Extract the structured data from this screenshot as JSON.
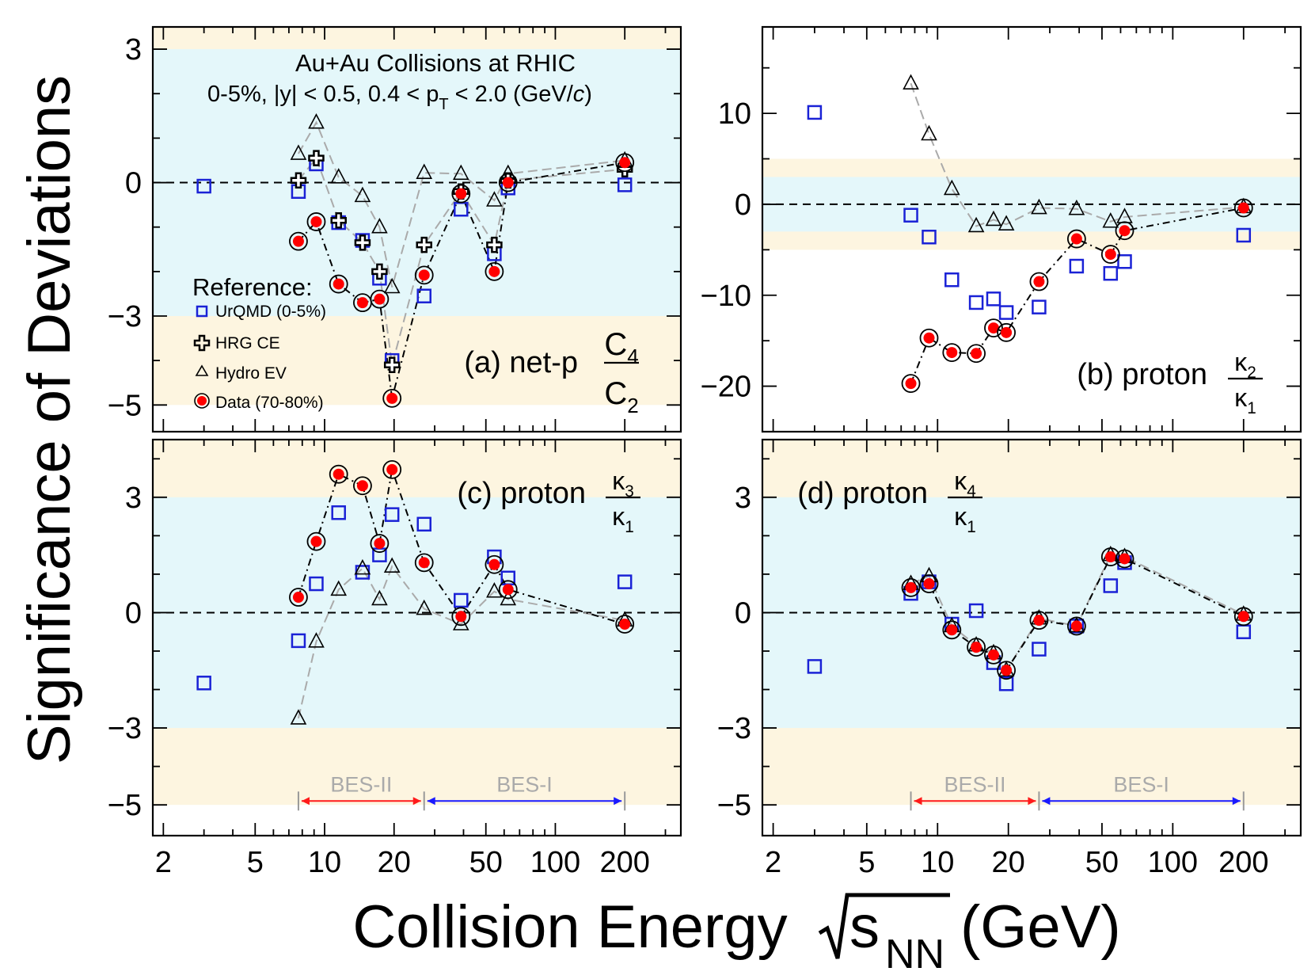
{
  "figure": {
    "ylabel": "Significance of Deviations",
    "xlabel_main": "Collision Energy",
    "xlabel_sqrt_s": "s",
    "xlabel_sub": "NN",
    "xlabel_unit": "(GeV)",
    "x_ticks": [
      2,
      5,
      10,
      20,
      50,
      100,
      200
    ],
    "x_tick_labels": [
      "2",
      "5",
      "10",
      "20",
      "50",
      "100",
      "200"
    ],
    "x_range": [
      1.8,
      350
    ],
    "header_line1": "Au+Au Collisions at RHIC",
    "header_line2_a": "0-5%, |y| < 0.5, 0.4 < p",
    "header_line2_sub": "T",
    "header_line2_b": " < 2.0 (GeV/",
    "header_line2_c": "c",
    "header_line2_d": ")",
    "legend_title": "Reference:",
    "legend": [
      "UrQMD (0-5%)",
      "HRG CE",
      "Hydro EV",
      "Data (70-80%)"
    ],
    "bes2_label": "BES-II",
    "bes1_label": "BES-I",
    "colors": {
      "band_inner": "#e4f7fa",
      "band_outer": "#fdf5e0",
      "urqmd": "#1a22d6",
      "data_fill": "#ff0000",
      "bes2_arrow": "#ff1a1a",
      "bes1_arrow": "#1a1aff",
      "bes_text": "#aaaaaa"
    }
  },
  "chart_data": [
    {
      "type": "scatter",
      "id": "a",
      "label": "(a) net-p",
      "ratio_num": "C",
      "ratio_num_sub": "4",
      "ratio_den": "C",
      "ratio_den_sub": "2",
      "ylim": [
        -5.6,
        3.5
      ],
      "yticks": [
        -5,
        -3,
        0,
        3
      ],
      "ytick_labels": [
        "−5",
        "−3",
        "0",
        "3"
      ],
      "bands": {
        "inner": [
          -3,
          3
        ],
        "outer": [
          -5,
          5
        ]
      },
      "series": [
        {
          "name": "UrQMD (0-5%)",
          "x": [
            3,
            7.7,
            9.2,
            11.5,
            14.6,
            17.3,
            19.6,
            27,
            39,
            54.4,
            62.4,
            200
          ],
          "y": [
            -0.08,
            -0.2,
            0.42,
            -0.9,
            -1.3,
            -2.15,
            -4.0,
            -2.55,
            -0.6,
            -1.6,
            -0.12,
            -0.05
          ]
        },
        {
          "name": "HRG CE",
          "x": [
            7.7,
            9.2,
            11.5,
            14.6,
            17.3,
            19.6,
            27,
            39,
            54.4,
            62.4,
            200
          ],
          "y": [
            0.05,
            0.55,
            -0.85,
            -1.35,
            -2.0,
            -4.1,
            -1.4,
            -0.2,
            -1.4,
            0.05,
            0.3
          ]
        },
        {
          "name": "Hydro EV",
          "x": [
            7.7,
            9.2,
            11.5,
            14.6,
            17.3,
            19.6,
            27,
            39,
            54.4,
            62.4,
            200
          ],
          "y": [
            0.65,
            1.35,
            0.12,
            -0.3,
            -1.0,
            -2.35,
            0.22,
            0.2,
            -0.4,
            0.2,
            0.5
          ]
        },
        {
          "name": "Data (70-80%)",
          "x": [
            7.7,
            9.2,
            11.5,
            14.6,
            17.3,
            19.6,
            27,
            39,
            54.4,
            62.4,
            200
          ],
          "y": [
            -1.32,
            -0.88,
            -2.28,
            -2.7,
            -2.62,
            -4.85,
            -2.08,
            -0.25,
            -2.0,
            0.0,
            0.45
          ]
        }
      ]
    },
    {
      "type": "scatter",
      "id": "b",
      "label": "(b) proton",
      "ratio_num": "κ",
      "ratio_num_sub": "2",
      "ratio_den": "κ",
      "ratio_den_sub": "1",
      "ylim": [
        -25,
        19.5
      ],
      "yticks": [
        -20,
        -10,
        0,
        10
      ],
      "ytick_labels": [
        "−20",
        "−10",
        "0",
        "10"
      ],
      "bands": {
        "inner": [
          -3,
          3
        ],
        "outer": [
          -5,
          5
        ]
      },
      "series": [
        {
          "name": "UrQMD (0-5%)",
          "x": [
            3,
            7.7,
            9.2,
            11.5,
            14.6,
            17.3,
            19.6,
            27,
            39,
            54.4,
            62.4,
            200
          ],
          "y": [
            10.1,
            -1.2,
            -3.6,
            -8.3,
            -10.8,
            -10.4,
            -11.9,
            -11.3,
            -6.8,
            -7.6,
            -6.3,
            -3.4
          ]
        },
        {
          "name": "Hydro EV",
          "x": [
            7.7,
            9.2,
            11.5,
            14.6,
            17.3,
            19.6,
            27,
            39,
            54.4,
            62.4,
            200
          ],
          "y": [
            13.3,
            7.7,
            1.7,
            -2.4,
            -1.7,
            -2.2,
            -0.4,
            -0.5,
            -1.9,
            -1.4,
            -0.3
          ]
        },
        {
          "name": "Data (70-80%)",
          "x": [
            7.7,
            9.2,
            11.5,
            14.6,
            17.3,
            19.6,
            27,
            39,
            54.4,
            62.4,
            200
          ],
          "y": [
            -19.7,
            -14.7,
            -16.3,
            -16.4,
            -13.6,
            -14.1,
            -8.5,
            -3.8,
            -5.5,
            -2.9,
            -0.4
          ]
        }
      ]
    },
    {
      "type": "scatter",
      "id": "c",
      "label": "(c) proton",
      "ratio_num": "κ",
      "ratio_num_sub": "3",
      "ratio_den": "κ",
      "ratio_den_sub": "1",
      "ylim": [
        -5.8,
        4.5
      ],
      "yticks": [
        -5,
        -3,
        0,
        3
      ],
      "ytick_labels": [
        "−5",
        "−3",
        "0",
        "3"
      ],
      "bands": {
        "inner": [
          -3,
          3
        ],
        "outer": [
          -5,
          5
        ]
      },
      "bes2_range": [
        7.7,
        27
      ],
      "bes1_range": [
        27,
        200
      ],
      "series": [
        {
          "name": "UrQMD (0-5%)",
          "x": [
            3,
            7.7,
            9.2,
            11.5,
            14.6,
            17.3,
            19.6,
            27,
            39,
            54.4,
            62.4,
            200
          ],
          "y": [
            -1.83,
            -0.73,
            0.75,
            2.6,
            1.05,
            1.5,
            2.55,
            2.3,
            0.32,
            1.45,
            0.9,
            0.8
          ]
        },
        {
          "name": "Hydro EV",
          "x": [
            7.7,
            9.2,
            11.5,
            14.6,
            17.3,
            19.6,
            27,
            39,
            54.4,
            62.4,
            200
          ],
          "y": [
            -2.75,
            -0.75,
            0.6,
            1.15,
            0.35,
            1.2,
            0.1,
            -0.3,
            0.55,
            0.35,
            -0.2
          ]
        },
        {
          "name": "Data (70-80%)",
          "x": [
            7.7,
            9.2,
            11.5,
            14.6,
            17.3,
            19.6,
            27,
            39,
            54.4,
            62.4,
            200
          ],
          "y": [
            0.4,
            1.85,
            3.6,
            3.3,
            1.8,
            3.72,
            1.3,
            -0.1,
            1.25,
            0.6,
            -0.3
          ]
        }
      ]
    },
    {
      "type": "scatter",
      "id": "d",
      "label": "(d) proton",
      "ratio_num": "κ",
      "ratio_num_sub": "4",
      "ratio_den": "κ",
      "ratio_den_sub": "1",
      "ylim": [
        -5.8,
        4.5
      ],
      "yticks": [
        -5,
        -3,
        0,
        3
      ],
      "ytick_labels": [
        "−5",
        "−3",
        "0",
        "3"
      ],
      "bands": {
        "inner": [
          -3,
          3
        ],
        "outer": [
          -5,
          5
        ]
      },
      "bes2_range": [
        7.7,
        27
      ],
      "bes1_range": [
        27,
        200
      ],
      "series": [
        {
          "name": "UrQMD (0-5%)",
          "x": [
            3,
            7.7,
            9.2,
            11.5,
            14.6,
            17.3,
            19.6,
            27,
            39,
            54.4,
            62.4,
            200
          ],
          "y": [
            -1.4,
            0.5,
            0.8,
            -0.3,
            0.05,
            -1.3,
            -1.85,
            -0.95,
            -0.35,
            0.7,
            1.3,
            -0.5
          ]
        },
        {
          "name": "Hydro EV",
          "x": [
            7.7,
            9.2,
            11.5,
            14.6,
            17.3,
            19.6,
            27,
            39,
            54.4,
            62.4,
            200
          ],
          "y": [
            0.75,
            0.95,
            -0.35,
            -0.85,
            -1.05,
            -1.5,
            -0.15,
            -0.35,
            1.5,
            1.45,
            -0.05
          ]
        },
        {
          "name": "Data (70-80%)",
          "x": [
            7.7,
            9.2,
            11.5,
            14.6,
            17.3,
            19.6,
            27,
            39,
            54.4,
            62.4,
            200
          ],
          "y": [
            0.65,
            0.75,
            -0.45,
            -0.9,
            -1.1,
            -1.5,
            -0.2,
            -0.35,
            1.45,
            1.4,
            -0.1
          ]
        }
      ]
    }
  ]
}
